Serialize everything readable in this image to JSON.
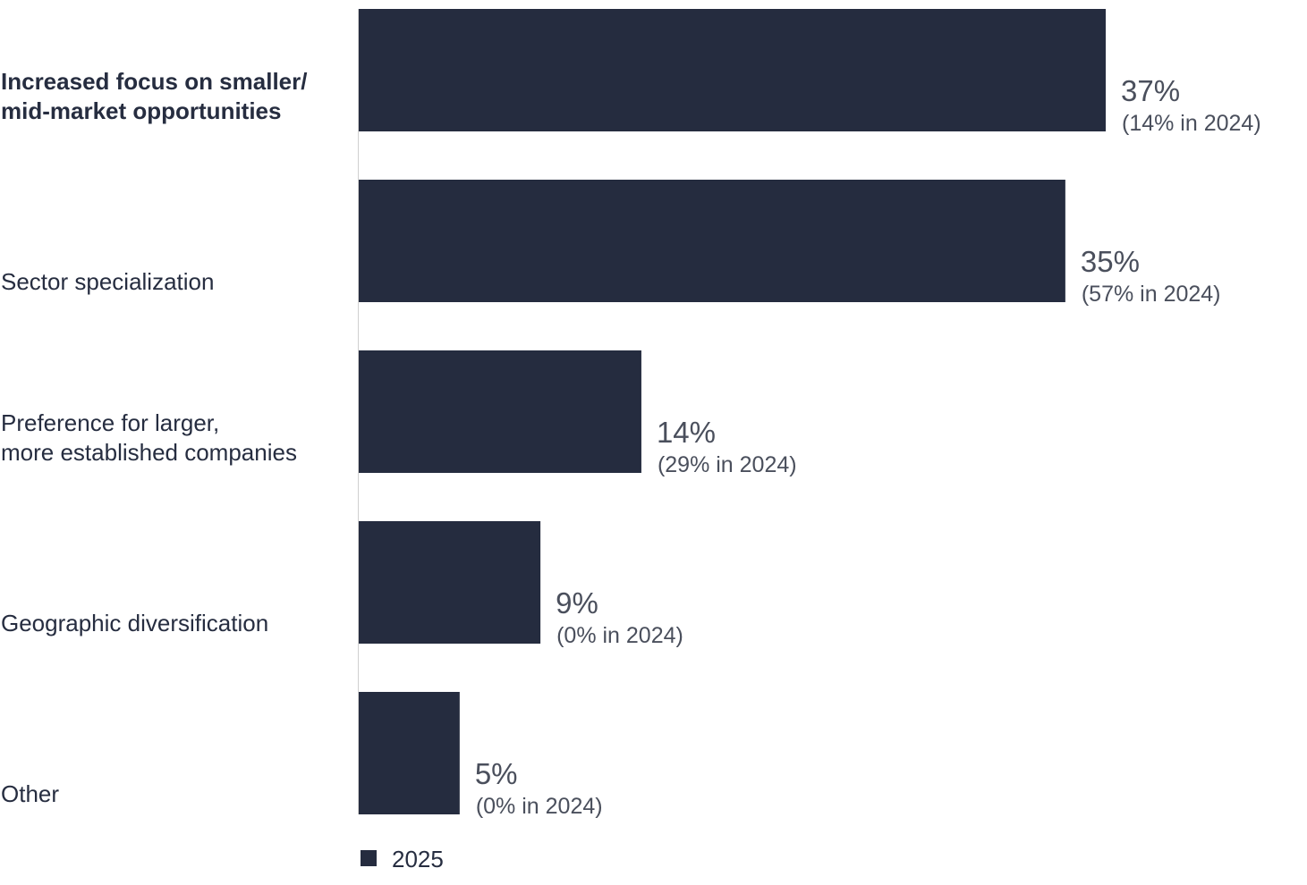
{
  "chart_data": {
    "type": "bar",
    "orientation": "horizontal",
    "categories": [
      [
        "Increased focus on smaller/",
        "mid-market opportunities"
      ],
      [
        "Sector specialization"
      ],
      [
        "Preference for larger,",
        "more established companies"
      ],
      [
        "Geographic diversification"
      ],
      [
        "Other"
      ]
    ],
    "highlight_index": 0,
    "series": [
      {
        "name": "2025",
        "values": [
          37,
          35,
          14,
          9,
          5
        ]
      }
    ],
    "value_labels": [
      "37%",
      "35%",
      "14%",
      "9%",
      "5%"
    ],
    "previous_labels": [
      "(14% in 2024)",
      "(57% in 2024)",
      "(29% in 2024)",
      "(0% in 2024)",
      "(0% in 2024)"
    ],
    "xlim": [
      0,
      37
    ],
    "grid": false,
    "legend_position": "bottom-left",
    "colors": {
      "bar": "#252c3f",
      "axis": "#d0d0d0"
    }
  }
}
